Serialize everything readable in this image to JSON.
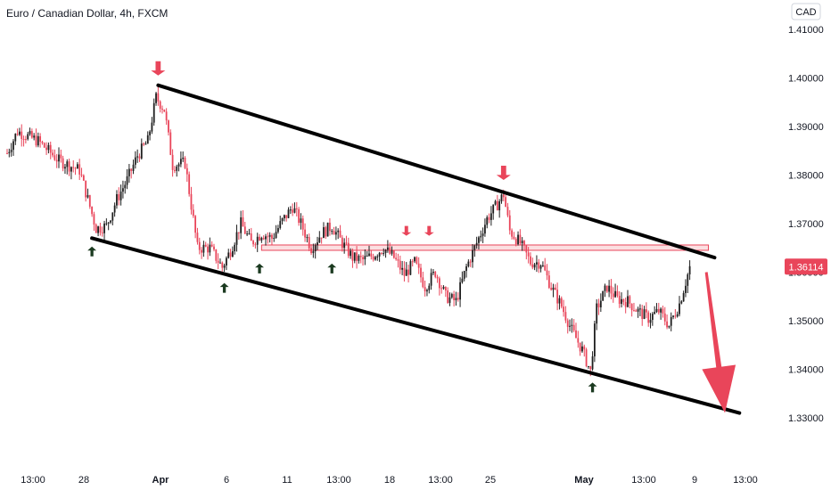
{
  "header": {
    "title": "Euro / Canadian Dollar, 4h, FXCM",
    "currency": "CAD"
  },
  "colors": {
    "up": "#1e1e1e",
    "down": "#e9455a",
    "zone_fill": "#f7c4c9",
    "zone_stroke": "#e9455a",
    "up_arrow": "#1b3a20",
    "tag": "#e9455a"
  },
  "chart_data": {
    "type": "candlestick",
    "symbol": "EURCAD",
    "timeframe": "4h",
    "source": "FXCM",
    "ylim": [
      1.326,
      1.416
    ],
    "y_ticks": [
      "1.41000",
      "1.40000",
      "1.39000",
      "1.38000",
      "1.37000",
      "1.36000",
      "1.35000",
      "1.34000",
      "1.33000"
    ],
    "x_ticks": [
      "13:00",
      "28",
      "Apr",
      "6",
      "11",
      "13:00",
      "18",
      "13:00",
      "25",
      "May",
      "13:00",
      "9",
      "13:00"
    ],
    "bold_x_ticks": [
      "Apr",
      "May"
    ],
    "current_price": "1.36114",
    "candle_count": 330,
    "price_path": [
      [
        0,
        1.3845
      ],
      [
        5,
        1.389
      ],
      [
        15,
        1.387
      ],
      [
        25,
        1.383
      ],
      [
        35,
        1.381
      ],
      [
        43,
        1.369
      ],
      [
        48,
        1.3695
      ],
      [
        53,
        1.375
      ],
      [
        58,
        1.379
      ],
      [
        63,
        1.384
      ],
      [
        68,
        1.387
      ],
      [
        72,
        1.396
      ],
      [
        76,
        1.3935
      ],
      [
        80,
        1.382
      ],
      [
        86,
        1.3825
      ],
      [
        92,
        1.365
      ],
      [
        98,
        1.365
      ],
      [
        104,
        1.361
      ],
      [
        108,
        1.3645
      ],
      [
        113,
        1.37
      ],
      [
        118,
        1.366
      ],
      [
        123,
        1.368
      ],
      [
        128,
        1.367
      ],
      [
        133,
        1.3705
      ],
      [
        138,
        1.3735
      ],
      [
        142,
        1.37
      ],
      [
        147,
        1.365
      ],
      [
        152,
        1.368
      ],
      [
        157,
        1.3695
      ],
      [
        162,
        1.366
      ],
      [
        167,
        1.363
      ],
      [
        172,
        1.3625
      ],
      [
        177,
        1.3635
      ],
      [
        182,
        1.365
      ],
      [
        187,
        1.363
      ],
      [
        192,
        1.3595
      ],
      [
        197,
        1.362
      ],
      [
        202,
        1.357
      ],
      [
        207,
        1.36
      ],
      [
        212,
        1.355
      ],
      [
        217,
        1.354
      ],
      [
        222,
        1.361
      ],
      [
        227,
        1.366
      ],
      [
        232,
        1.371
      ],
      [
        237,
        1.374
      ],
      [
        240,
        1.376
      ],
      [
        243,
        1.3685
      ],
      [
        248,
        1.366
      ],
      [
        253,
        1.362
      ],
      [
        258,
        1.362
      ],
      [
        263,
        1.357
      ],
      [
        268,
        1.353
      ],
      [
        273,
        1.348
      ],
      [
        278,
        1.344
      ],
      [
        282,
        1.3395
      ],
      [
        285,
        1.3525
      ],
      [
        290,
        1.357
      ],
      [
        295,
        1.3545
      ],
      [
        300,
        1.354
      ],
      [
        305,
        1.352
      ],
      [
        310,
        1.3505
      ],
      [
        315,
        1.352
      ],
      [
        320,
        1.349
      ],
      [
        325,
        1.3535
      ],
      [
        330,
        1.361
      ]
    ],
    "annotations": {
      "channel_upper": {
        "from": [
          73,
          1.3985
        ],
        "to": [
          342,
          1.363
        ]
      },
      "channel_lower": {
        "from": [
          41,
          1.367
        ],
        "to": [
          354,
          1.331
        ]
      },
      "resistance_zone": {
        "from_index": 123,
        "to_index": 339,
        "y_top": 1.3656,
        "y_bottom": 1.3645
      },
      "down_arrows_major": [
        [
          73,
          1.4005
        ],
        [
          240,
          1.379
        ]
      ],
      "down_arrows_minor": [
        [
          193,
          1.3675
        ],
        [
          204,
          1.3675
        ]
      ],
      "up_arrows": [
        [
          41,
          1.366
        ],
        [
          105,
          1.3585
        ],
        [
          122,
          1.3625
        ],
        [
          157,
          1.3625
        ],
        [
          283,
          1.338
        ]
      ],
      "projection_arrow": {
        "from": [
          338,
          1.36
        ],
        "to": [
          347,
          1.331
        ]
      }
    }
  }
}
